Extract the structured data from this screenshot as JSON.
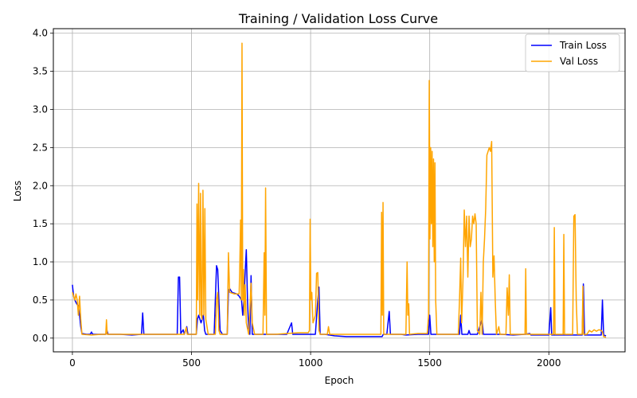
{
  "chart_data": {
    "type": "line",
    "title": "Training / Validation Loss Curve",
    "xlabel": "Epoch",
    "ylabel": "Loss",
    "xlim": [
      -80,
      2320
    ],
    "ylim": [
      -0.18,
      4.06
    ],
    "xticks": [
      0,
      500,
      1000,
      1500,
      2000
    ],
    "yticks": [
      0.0,
      0.5,
      1.0,
      1.5,
      2.0,
      2.5,
      3.0,
      3.5,
      4.0
    ],
    "xtick_labels": [
      "0",
      "500",
      "1000",
      "1500",
      "2000"
    ],
    "ytick_labels": [
      "0.0",
      "0.5",
      "1.0",
      "1.5",
      "2.0",
      "2.5",
      "3.0",
      "3.5",
      "4.0"
    ],
    "grid": true,
    "legend_position": "top-right",
    "series": [
      {
        "name": "Train Loss",
        "color": "#0000ff",
        "points": [
          [
            0,
            0.7
          ],
          [
            5,
            0.55
          ],
          [
            10,
            0.5
          ],
          [
            18,
            0.45
          ],
          [
            25,
            0.42
          ],
          [
            30,
            0.3
          ],
          [
            35,
            0.15
          ],
          [
            40,
            0.06
          ],
          [
            60,
            0.05
          ],
          [
            75,
            0.05
          ],
          [
            80,
            0.08
          ],
          [
            85,
            0.05
          ],
          [
            120,
            0.05
          ],
          [
            140,
            0.05
          ],
          [
            145,
            0.1
          ],
          [
            150,
            0.05
          ],
          [
            200,
            0.05
          ],
          [
            250,
            0.04
          ],
          [
            290,
            0.05
          ],
          [
            295,
            0.33
          ],
          [
            300,
            0.05
          ],
          [
            350,
            0.05
          ],
          [
            400,
            0.05
          ],
          [
            440,
            0.05
          ],
          [
            445,
            0.8
          ],
          [
            450,
            0.8
          ],
          [
            455,
            0.06
          ],
          [
            465,
            0.11
          ],
          [
            470,
            0.05
          ],
          [
            480,
            0.15
          ],
          [
            485,
            0.05
          ],
          [
            520,
            0.05
          ],
          [
            525,
            0.25
          ],
          [
            530,
            0.3
          ],
          [
            535,
            0.25
          ],
          [
            540,
            0.2
          ],
          [
            550,
            0.3
          ],
          [
            555,
            0.1
          ],
          [
            560,
            0.05
          ],
          [
            580,
            0.05
          ],
          [
            595,
            0.05
          ],
          [
            600,
            0.5
          ],
          [
            605,
            0.95
          ],
          [
            610,
            0.9
          ],
          [
            615,
            0.5
          ],
          [
            620,
            0.1
          ],
          [
            630,
            0.05
          ],
          [
            650,
            0.05
          ],
          [
            655,
            0.62
          ],
          [
            660,
            0.65
          ],
          [
            670,
            0.6
          ],
          [
            690,
            0.58
          ],
          [
            700,
            0.55
          ],
          [
            710,
            0.5
          ],
          [
            715,
            0.3
          ],
          [
            720,
            0.5
          ],
          [
            725,
            0.85
          ],
          [
            730,
            1.16
          ],
          [
            735,
            0.5
          ],
          [
            740,
            0.1
          ],
          [
            745,
            0.05
          ],
          [
            750,
            0.82
          ],
          [
            755,
            0.05
          ],
          [
            770,
            0.05
          ],
          [
            800,
            0.05
          ],
          [
            850,
            0.05
          ],
          [
            900,
            0.05
          ],
          [
            920,
            0.2
          ],
          [
            925,
            0.05
          ],
          [
            960,
            0.05
          ],
          [
            1000,
            0.05
          ],
          [
            1010,
            0.05
          ],
          [
            1020,
            0.05
          ],
          [
            1030,
            0.5
          ],
          [
            1035,
            0.67
          ],
          [
            1040,
            0.05
          ],
          [
            1060,
            0.05
          ],
          [
            1100,
            0.03
          ],
          [
            1150,
            0.02
          ],
          [
            1200,
            0.02
          ],
          [
            1250,
            0.02
          ],
          [
            1300,
            0.02
          ],
          [
            1305,
            0.05
          ],
          [
            1320,
            0.05
          ],
          [
            1330,
            0.35
          ],
          [
            1335,
            0.05
          ],
          [
            1380,
            0.05
          ],
          [
            1400,
            0.04
          ],
          [
            1450,
            0.05
          ],
          [
            1495,
            0.05
          ],
          [
            1500,
            0.3
          ],
          [
            1505,
            0.05
          ],
          [
            1550,
            0.05
          ],
          [
            1600,
            0.05
          ],
          [
            1625,
            0.05
          ],
          [
            1630,
            0.3
          ],
          [
            1635,
            0.05
          ],
          [
            1660,
            0.05
          ],
          [
            1665,
            0.1
          ],
          [
            1670,
            0.05
          ],
          [
            1700,
            0.05
          ],
          [
            1720,
            0.25
          ],
          [
            1725,
            0.05
          ],
          [
            1760,
            0.05
          ],
          [
            1800,
            0.05
          ],
          [
            1850,
            0.04
          ],
          [
            1900,
            0.05
          ],
          [
            1920,
            0.06
          ],
          [
            1925,
            0.04
          ],
          [
            1950,
            0.04
          ],
          [
            2000,
            0.04
          ],
          [
            2008,
            0.4
          ],
          [
            2012,
            0.04
          ],
          [
            2050,
            0.04
          ],
          [
            2100,
            0.04
          ],
          [
            2140,
            0.04
          ],
          [
            2145,
            0.71
          ],
          [
            2150,
            0.04
          ],
          [
            2200,
            0.04
          ],
          [
            2220,
            0.04
          ],
          [
            2225,
            0.5
          ],
          [
            2230,
            0.04
          ],
          [
            2240,
            0.03
          ]
        ]
      },
      {
        "name": "Val Loss",
        "color": "#ffa500",
        "points": [
          [
            0,
            0.6
          ],
          [
            5,
            0.55
          ],
          [
            10,
            0.5
          ],
          [
            15,
            0.58
          ],
          [
            20,
            0.5
          ],
          [
            25,
            0.3
          ],
          [
            30,
            0.55
          ],
          [
            35,
            0.25
          ],
          [
            40,
            0.05
          ],
          [
            80,
            0.04
          ],
          [
            120,
            0.05
          ],
          [
            140,
            0.05
          ],
          [
            143,
            0.24
          ],
          [
            146,
            0.05
          ],
          [
            200,
            0.05
          ],
          [
            250,
            0.05
          ],
          [
            300,
            0.05
          ],
          [
            350,
            0.05
          ],
          [
            400,
            0.05
          ],
          [
            450,
            0.05
          ],
          [
            470,
            0.05
          ],
          [
            478,
            0.14
          ],
          [
            482,
            0.05
          ],
          [
            520,
            0.05
          ],
          [
            523,
            1.76
          ],
          [
            526,
            0.5
          ],
          [
            530,
            2.03
          ],
          [
            534,
            0.3
          ],
          [
            538,
            1.9
          ],
          [
            541,
            0.3
          ],
          [
            544,
            0.25
          ],
          [
            548,
            1.94
          ],
          [
            552,
            0.3
          ],
          [
            556,
            1.7
          ],
          [
            560,
            0.25
          ],
          [
            570,
            0.05
          ],
          [
            600,
            0.05
          ],
          [
            605,
            0.5
          ],
          [
            610,
            0.6
          ],
          [
            615,
            0.1
          ],
          [
            620,
            0.05
          ],
          [
            640,
            0.05
          ],
          [
            650,
            0.05
          ],
          [
            655,
            1.12
          ],
          [
            660,
            0.6
          ],
          [
            680,
            0.58
          ],
          [
            700,
            0.58
          ],
          [
            703,
            1.0
          ],
          [
            706,
            1.55
          ],
          [
            709,
            0.5
          ],
          [
            712,
            3.87
          ],
          [
            715,
            0.5
          ],
          [
            718,
            0.9
          ],
          [
            721,
            0.3
          ],
          [
            725,
            0.7
          ],
          [
            730,
            0.2
          ],
          [
            740,
            0.05
          ],
          [
            750,
            0.72
          ],
          [
            755,
            0.2
          ],
          [
            765,
            0.05
          ],
          [
            800,
            0.05
          ],
          [
            805,
            1.12
          ],
          [
            808,
            0.3
          ],
          [
            811,
            1.97
          ],
          [
            815,
            0.05
          ],
          [
            850,
            0.05
          ],
          [
            900,
            0.06
          ],
          [
            950,
            0.07
          ],
          [
            990,
            0.07
          ],
          [
            995,
            0.1
          ],
          [
            998,
            1.56
          ],
          [
            1001,
            0.5
          ],
          [
            1005,
            0.6
          ],
          [
            1010,
            0.2
          ],
          [
            1020,
            0.3
          ],
          [
            1025,
            0.85
          ],
          [
            1030,
            0.86
          ],
          [
            1035,
            0.1
          ],
          [
            1040,
            0.05
          ],
          [
            1070,
            0.05
          ],
          [
            1075,
            0.15
          ],
          [
            1080,
            0.05
          ],
          [
            1100,
            0.05
          ],
          [
            1150,
            0.05
          ],
          [
            1200,
            0.05
          ],
          [
            1250,
            0.05
          ],
          [
            1295,
            0.05
          ],
          [
            1298,
            1.65
          ],
          [
            1301,
            0.3
          ],
          [
            1304,
            1.78
          ],
          [
            1307,
            0.05
          ],
          [
            1350,
            0.05
          ],
          [
            1400,
            0.05
          ],
          [
            1405,
            1.0
          ],
          [
            1408,
            0.3
          ],
          [
            1412,
            0.45
          ],
          [
            1415,
            0.05
          ],
          [
            1450,
            0.06
          ],
          [
            1490,
            0.06
          ],
          [
            1495,
            0.3
          ],
          [
            1498,
            3.38
          ],
          [
            1501,
            1.3
          ],
          [
            1504,
            2.5
          ],
          [
            1507,
            1.5
          ],
          [
            1510,
            2.45
          ],
          [
            1513,
            1.2
          ],
          [
            1516,
            2.35
          ],
          [
            1519,
            1.0
          ],
          [
            1522,
            2.3
          ],
          [
            1525,
            0.5
          ],
          [
            1530,
            0.05
          ],
          [
            1580,
            0.05
          ],
          [
            1620,
            0.05
          ],
          [
            1625,
            0.5
          ],
          [
            1630,
            1.05
          ],
          [
            1634,
            0.2
          ],
          [
            1640,
            0.8
          ],
          [
            1645,
            1.68
          ],
          [
            1650,
            1.2
          ],
          [
            1655,
            1.6
          ],
          [
            1660,
            0.8
          ],
          [
            1665,
            1.6
          ],
          [
            1670,
            1.2
          ],
          [
            1675,
            1.3
          ],
          [
            1680,
            1.6
          ],
          [
            1685,
            1.5
          ],
          [
            1690,
            1.63
          ],
          [
            1695,
            1.5
          ],
          [
            1700,
            0.1
          ],
          [
            1710,
            0.05
          ],
          [
            1715,
            0.6
          ],
          [
            1720,
            0.05
          ],
          [
            1725,
            1.0
          ],
          [
            1730,
            1.3
          ],
          [
            1735,
            1.7
          ],
          [
            1740,
            2.4
          ],
          [
            1745,
            2.45
          ],
          [
            1750,
            2.5
          ],
          [
            1755,
            2.45
          ],
          [
            1760,
            2.58
          ],
          [
            1765,
            0.8
          ],
          [
            1770,
            1.08
          ],
          [
            1775,
            0.5
          ],
          [
            1780,
            0.05
          ],
          [
            1790,
            0.15
          ],
          [
            1795,
            0.05
          ],
          [
            1820,
            0.05
          ],
          [
            1825,
            0.66
          ],
          [
            1830,
            0.3
          ],
          [
            1834,
            0.83
          ],
          [
            1838,
            0.05
          ],
          [
            1870,
            0.05
          ],
          [
            1900,
            0.05
          ],
          [
            1903,
            0.91
          ],
          [
            1906,
            0.05
          ],
          [
            1950,
            0.05
          ],
          [
            2000,
            0.05
          ],
          [
            2020,
            0.05
          ],
          [
            2023,
            1.45
          ],
          [
            2026,
            0.05
          ],
          [
            2060,
            0.05
          ],
          [
            2063,
            1.36
          ],
          [
            2066,
            0.05
          ],
          [
            2100,
            0.05
          ],
          [
            2105,
            1.6
          ],
          [
            2110,
            1.62
          ],
          [
            2115,
            0.5
          ],
          [
            2120,
            0.05
          ],
          [
            2140,
            0.05
          ],
          [
            2143,
            0.68
          ],
          [
            2146,
            0.05
          ],
          [
            2160,
            0.05
          ],
          [
            2170,
            0.1
          ],
          [
            2180,
            0.08
          ],
          [
            2190,
            0.11
          ],
          [
            2200,
            0.09
          ],
          [
            2210,
            0.11
          ],
          [
            2220,
            0.1
          ],
          [
            2225,
            0.08
          ],
          [
            2230,
            0.02
          ],
          [
            2240,
            0.01
          ]
        ]
      }
    ]
  }
}
